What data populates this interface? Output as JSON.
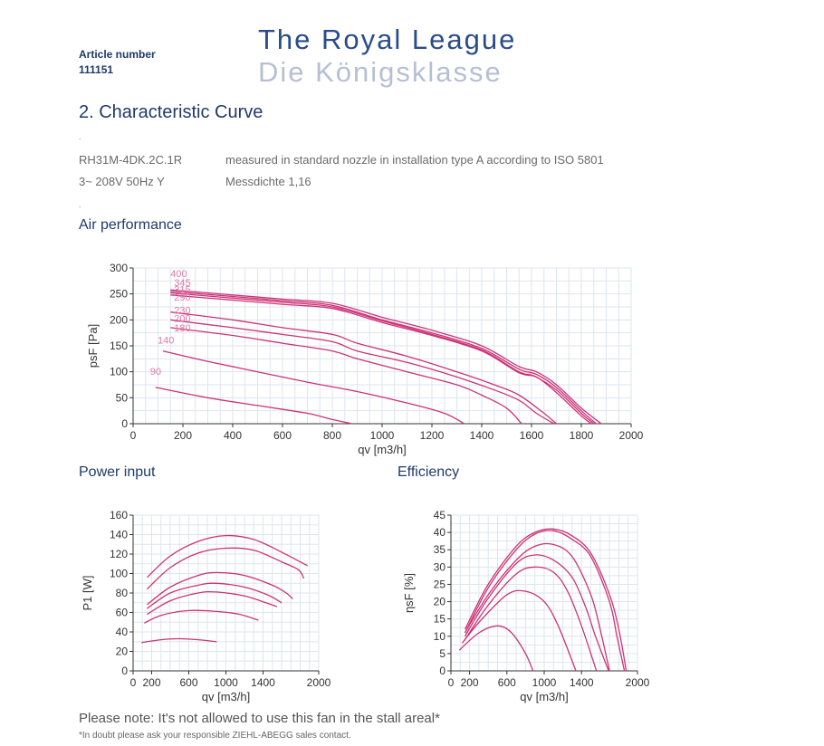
{
  "header": {
    "article_label": "Article number",
    "article_number": "111151",
    "title_en": "The Royal League",
    "title_de": "Die Königsklasse"
  },
  "section_title": "2.  Characteristic Curve",
  "info": {
    "model": "RH31M-4DK.2C.1R",
    "measurement": "measured in standard nozzle in installation type A according to ISO 5801",
    "supply": "3~ 208V 50Hz Y",
    "density": "Messdichte 1,16"
  },
  "headings": {
    "air": "Air performance",
    "power": "Power input",
    "efficiency": "Efficiency"
  },
  "note": "Please note: It's not allowed to use this fan in the stall areal*",
  "footnote": "*In doubt please ask your responsible ZIEHL-ABEGG sales contact.",
  "colors": {
    "curve": "#cc3377",
    "grid": "#dde6ee",
    "axis": "#333333",
    "heading": "#1f3a6a"
  },
  "chart_data": [
    {
      "type": "line",
      "title": "Air performance",
      "xlabel": "qv [m3/h]",
      "ylabel": "psF [Pa]",
      "xlim": [
        0,
        2000
      ],
      "ylim": [
        0,
        300
      ],
      "xticks": [
        0,
        200,
        400,
        600,
        800,
        1000,
        1200,
        1400,
        1600,
        1800,
        2000
      ],
      "yticks": [
        0,
        50,
        100,
        150,
        200,
        250,
        300
      ],
      "grid": true,
      "annotations": [
        "400",
        "345",
        "315",
        "290",
        "230",
        "200",
        "180",
        "140",
        "90"
      ],
      "series": [
        {
          "name": "400",
          "x": [
            150,
            400,
            600,
            800,
            1000,
            1200,
            1400,
            1550,
            1620,
            1700,
            1800,
            1880
          ],
          "y": [
            258,
            248,
            240,
            232,
            205,
            180,
            150,
            110,
            100,
            75,
            30,
            0
          ]
        },
        {
          "name": "345",
          "x": [
            150,
            400,
            600,
            800,
            1000,
            1200,
            1400,
            1550,
            1620,
            1700,
            1800,
            1860
          ],
          "y": [
            255,
            245,
            237,
            228,
            200,
            175,
            145,
            105,
            95,
            70,
            25,
            0
          ]
        },
        {
          "name": "315",
          "x": [
            150,
            400,
            600,
            800,
            1000,
            1200,
            1400,
            1550,
            1610,
            1700,
            1800,
            1850
          ],
          "y": [
            252,
            242,
            234,
            225,
            198,
            172,
            142,
            100,
            92,
            65,
            20,
            0
          ]
        },
        {
          "name": "290",
          "x": [
            150,
            400,
            600,
            800,
            1000,
            1200,
            1400,
            1550,
            1620,
            1700,
            1800,
            1840
          ],
          "y": [
            248,
            238,
            230,
            222,
            195,
            170,
            140,
            98,
            90,
            60,
            15,
            0
          ]
        },
        {
          "name": "230",
          "x": [
            150,
            400,
            600,
            800,
            900,
            1100,
            1300,
            1450,
            1550,
            1650,
            1700
          ],
          "y": [
            215,
            200,
            185,
            172,
            155,
            130,
            100,
            75,
            55,
            20,
            0
          ]
        },
        {
          "name": "200",
          "x": [
            150,
            400,
            600,
            800,
            900,
            1100,
            1300,
            1450,
            1550,
            1620,
            1690
          ],
          "y": [
            200,
            185,
            172,
            158,
            140,
            118,
            90,
            65,
            45,
            20,
            0
          ]
        },
        {
          "name": "180",
          "x": [
            150,
            400,
            600,
            800,
            900,
            1100,
            1300,
            1400,
            1500,
            1560
          ],
          "y": [
            185,
            170,
            155,
            140,
            125,
            100,
            75,
            55,
            30,
            0
          ]
        },
        {
          "name": "140",
          "x": [
            120,
            300,
            500,
            700,
            900,
            1100,
            1250,
            1330
          ],
          "y": [
            140,
            120,
            100,
            80,
            62,
            40,
            20,
            0
          ]
        },
        {
          "name": "90",
          "x": [
            90,
            300,
            500,
            700,
            800,
            880
          ],
          "y": [
            70,
            50,
            35,
            20,
            8,
            0
          ]
        }
      ]
    },
    {
      "type": "line",
      "title": "Power input",
      "xlabel": "qv [m3/h]",
      "ylabel": "P1 [W]",
      "xlim": [
        0,
        2000
      ],
      "ylim": [
        0,
        160
      ],
      "xticks": [
        0,
        200,
        600,
        1000,
        1400,
        2000
      ],
      "yticks": [
        0,
        20,
        40,
        60,
        80,
        100,
        120,
        140,
        160
      ],
      "grid": true,
      "series": [
        {
          "name": "400",
          "x": [
            150,
            400,
            700,
            1000,
            1300,
            1600,
            1800,
            1880
          ],
          "y": [
            96,
            118,
            133,
            139,
            135,
            122,
            112,
            108
          ]
        },
        {
          "name": "345",
          "x": [
            150,
            400,
            700,
            1000,
            1300,
            1600,
            1780,
            1840
          ],
          "y": [
            84,
            106,
            121,
            126,
            124,
            112,
            104,
            95
          ]
        },
        {
          "name": "230",
          "x": [
            150,
            400,
            700,
            900,
            1200,
            1500,
            1650,
            1720
          ],
          "y": [
            68,
            86,
            98,
            101,
            98,
            88,
            80,
            74
          ]
        },
        {
          "name": "200",
          "x": [
            150,
            400,
            700,
            900,
            1200,
            1450,
            1600
          ],
          "y": [
            64,
            80,
            88,
            90,
            86,
            78,
            70
          ]
        },
        {
          "name": "180",
          "x": [
            150,
            400,
            700,
            900,
            1200,
            1400,
            1550
          ],
          "y": [
            58,
            72,
            80,
            81,
            77,
            71,
            66
          ]
        },
        {
          "name": "140",
          "x": [
            120,
            300,
            600,
            900,
            1150,
            1350
          ],
          "y": [
            49,
            57,
            62,
            61,
            58,
            52
          ]
        },
        {
          "name": "90",
          "x": [
            90,
            300,
            500,
            700,
            900
          ],
          "y": [
            29,
            32,
            33,
            32,
            30
          ]
        }
      ]
    },
    {
      "type": "line",
      "title": "Efficiency",
      "xlabel": "qv [m3/h]",
      "ylabel": "ηsF [%]",
      "xlim": [
        0,
        2000
      ],
      "ylim": [
        0,
        45
      ],
      "xticks": [
        0,
        200,
        600,
        1000,
        1400,
        2000
      ],
      "yticks": [
        0,
        5,
        10,
        15,
        20,
        25,
        30,
        35,
        40,
        45
      ],
      "grid": true,
      "series": [
        {
          "name": "400",
          "x": [
            150,
            400,
            700,
            900,
            1100,
            1300,
            1500,
            1700,
            1800,
            1880
          ],
          "y": [
            12,
            25,
            36,
            40,
            41,
            39,
            34,
            22,
            12,
            0
          ]
        },
        {
          "name": "345",
          "x": [
            150,
            400,
            700,
            900,
            1100,
            1300,
            1500,
            1700,
            1780,
            1860
          ],
          "y": [
            11,
            24,
            35,
            39.5,
            40.5,
            38,
            33,
            20,
            10,
            0
          ]
        },
        {
          "name": "230",
          "x": [
            150,
            400,
            700,
            900,
            1100,
            1300,
            1500,
            1600,
            1700
          ],
          "y": [
            11,
            22,
            32,
            36,
            36.5,
            33,
            22,
            12,
            0
          ]
        },
        {
          "name": "200",
          "x": [
            150,
            400,
            700,
            900,
            1100,
            1300,
            1450,
            1550,
            1690
          ],
          "y": [
            10,
            21,
            31,
            33.5,
            32,
            27,
            18,
            10,
            0
          ]
        },
        {
          "name": "180",
          "x": [
            150,
            400,
            700,
            900,
            1100,
            1250,
            1400,
            1560
          ],
          "y": [
            9,
            19,
            28,
            30,
            28.5,
            23,
            13,
            0
          ]
        },
        {
          "name": "140",
          "x": [
            120,
            300,
            600,
            800,
            1000,
            1150,
            1340
          ],
          "y": [
            8,
            14,
            22,
            23,
            20,
            13,
            0
          ]
        },
        {
          "name": "90",
          "x": [
            90,
            300,
            500,
            650,
            800,
            880
          ],
          "y": [
            6,
            11,
            13,
            11,
            5,
            0
          ]
        }
      ]
    }
  ]
}
